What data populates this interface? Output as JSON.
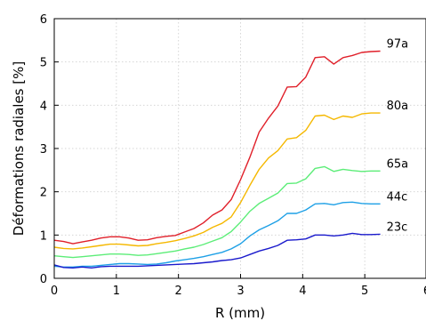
{
  "chart_data": {
    "type": "line",
    "title": "",
    "xlabel": "R (mm)",
    "ylabel": "Déformations radiales [%]",
    "xlim": [
      0,
      6
    ],
    "ylim": [
      0,
      6
    ],
    "xticks": [
      "0",
      "1",
      "2",
      "3",
      "4",
      "5",
      "6"
    ],
    "yticks": [
      "0",
      "1",
      "2",
      "3",
      "4",
      "5",
      "6"
    ],
    "grid": true,
    "x": [
      0,
      0.15,
      0.3,
      0.45,
      0.6,
      0.75,
      0.9,
      1.05,
      1.2,
      1.35,
      1.5,
      1.65,
      1.8,
      1.95,
      2.1,
      2.25,
      2.4,
      2.55,
      2.7,
      2.85,
      3.0,
      3.15,
      3.3,
      3.45,
      3.6,
      3.75,
      3.9,
      4.05,
      4.2,
      4.35,
      4.5,
      4.65,
      4.8,
      4.95,
      5.1,
      5.25
    ],
    "series": [
      {
        "name": "97a",
        "color": "#e0202a",
        "values": [
          0.88,
          0.85,
          0.8,
          0.84,
          0.88,
          0.93,
          0.96,
          0.96,
          0.93,
          0.88,
          0.89,
          0.94,
          0.97,
          0.99,
          1.07,
          1.15,
          1.28,
          1.46,
          1.58,
          1.82,
          2.28,
          2.8,
          3.38,
          3.7,
          3.98,
          4.42,
          4.43,
          4.65,
          5.1,
          5.12,
          4.95,
          5.1,
          5.15,
          5.22,
          5.24,
          5.25
        ]
      },
      {
        "name": "80a",
        "color": "#f5b800",
        "values": [
          0.72,
          0.69,
          0.68,
          0.7,
          0.73,
          0.76,
          0.79,
          0.79,
          0.77,
          0.75,
          0.76,
          0.8,
          0.83,
          0.87,
          0.92,
          0.98,
          1.06,
          1.18,
          1.27,
          1.42,
          1.75,
          2.15,
          2.52,
          2.78,
          2.95,
          3.22,
          3.25,
          3.42,
          3.75,
          3.77,
          3.67,
          3.75,
          3.72,
          3.8,
          3.82,
          3.82
        ]
      },
      {
        "name": "65a",
        "color": "#5ced78",
        "values": [
          0.52,
          0.5,
          0.48,
          0.5,
          0.52,
          0.54,
          0.56,
          0.56,
          0.55,
          0.53,
          0.54,
          0.57,
          0.6,
          0.63,
          0.68,
          0.72,
          0.78,
          0.86,
          0.94,
          1.08,
          1.3,
          1.55,
          1.73,
          1.85,
          1.97,
          2.19,
          2.2,
          2.3,
          2.54,
          2.58,
          2.47,
          2.52,
          2.49,
          2.47,
          2.48,
          2.48
        ]
      },
      {
        "name": "44c",
        "color": "#1ea0e6",
        "values": [
          0.28,
          0.26,
          0.26,
          0.28,
          0.28,
          0.3,
          0.32,
          0.34,
          0.34,
          0.33,
          0.32,
          0.33,
          0.36,
          0.4,
          0.43,
          0.46,
          0.5,
          0.55,
          0.6,
          0.68,
          0.8,
          0.98,
          1.12,
          1.22,
          1.33,
          1.5,
          1.5,
          1.58,
          1.72,
          1.73,
          1.7,
          1.75,
          1.76,
          1.73,
          1.72,
          1.72
        ]
      },
      {
        "name": "23c",
        "color": "#1a1acc",
        "values": [
          0.31,
          0.25,
          0.24,
          0.26,
          0.24,
          0.27,
          0.28,
          0.28,
          0.28,
          0.28,
          0.29,
          0.3,
          0.31,
          0.32,
          0.33,
          0.34,
          0.36,
          0.38,
          0.41,
          0.43,
          0.47,
          0.55,
          0.63,
          0.69,
          0.76,
          0.88,
          0.89,
          0.91,
          1.0,
          1.0,
          0.98,
          1.0,
          1.04,
          1.01,
          1.01,
          1.02
        ]
      }
    ]
  }
}
